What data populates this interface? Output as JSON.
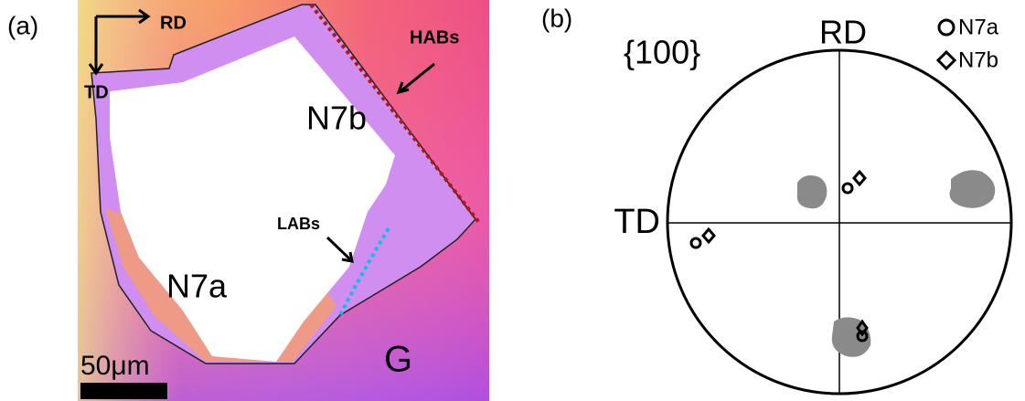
{
  "panel_a": {
    "label": "(a)",
    "axes": {
      "rd": "RD",
      "td": "TD"
    },
    "annotations": {
      "habs": "HABs",
      "labs": "LABs"
    },
    "grains": {
      "n7b": "N7b",
      "n7a": "N7a",
      "g": "G"
    },
    "scale_bar": "50μm"
  },
  "panel_b": {
    "label": "(b)",
    "plane": "{100}",
    "axes": {
      "rd": "RD",
      "td": "TD"
    },
    "legend": [
      "N7a",
      "N7b"
    ]
  }
}
